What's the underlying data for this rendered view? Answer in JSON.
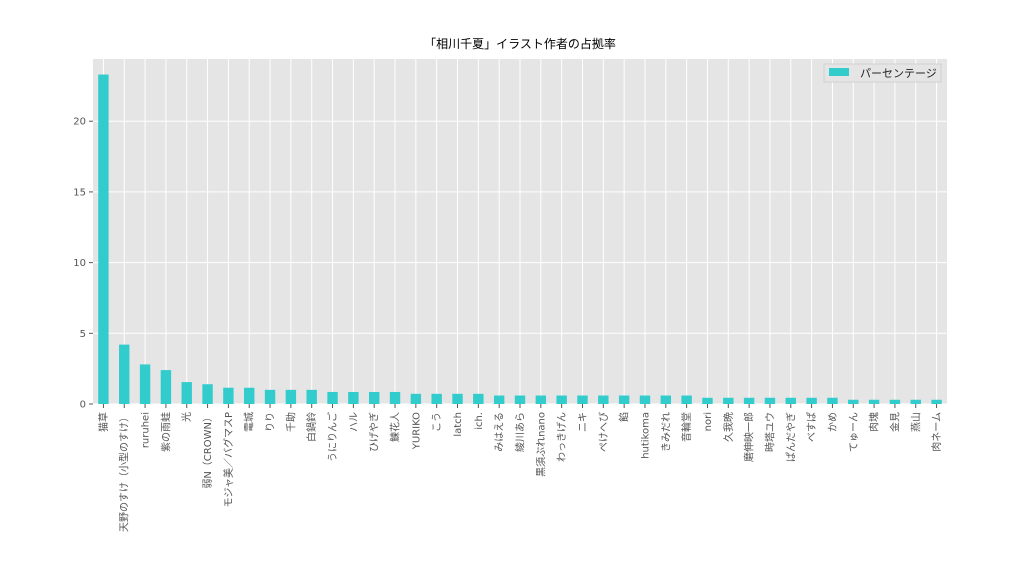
{
  "chart_data": {
    "type": "bar",
    "title": "「相川千夏」イラスト作者の占拠率",
    "xlabel": "",
    "ylabel": "",
    "ylim": [
      0,
      24.4
    ],
    "yticks": [
      0,
      5,
      10,
      15,
      20
    ],
    "grid": true,
    "legend_position": "top-right",
    "categories": [
      "猫草",
      "天野のすけ（小型のすけ）",
      "ruruhei",
      "紫の雨蛙",
      "光",
      "弱N（CROWN）",
      "モジャ美／バグマスP",
      "電城",
      "りり",
      "千助",
      "白鍋鈴",
      "うにりんご",
      "ハル",
      "ひげやぎ",
      "鰊花人",
      "YURIKO",
      "こう",
      "latch",
      "ich.",
      "みはえる",
      "綾川あら",
      "黒須ぶれnano",
      "わっきげん",
      "ニキ",
      "ぺけへび",
      "餡",
      "hutikoma",
      "きみだれ",
      "音輪堂",
      "nori",
      "久我晩",
      "磨伸映一郎",
      "時塔ユウ",
      "ぱんだやぎ",
      "べすぱ",
      "かめ",
      "てゅーん",
      "肉塊",
      "金見",
      "燕山",
      "肉ネーム"
    ],
    "series": [
      {
        "name": "パーセンテージ",
        "color": "#33cccc",
        "values": [
          23.3,
          4.2,
          2.8,
          2.4,
          1.55,
          1.4,
          1.15,
          1.15,
          1.0,
          1.0,
          1.0,
          0.85,
          0.85,
          0.85,
          0.85,
          0.72,
          0.72,
          0.72,
          0.72,
          0.6,
          0.6,
          0.6,
          0.6,
          0.6,
          0.6,
          0.6,
          0.6,
          0.6,
          0.6,
          0.44,
          0.44,
          0.44,
          0.44,
          0.44,
          0.44,
          0.44,
          0.3,
          0.3,
          0.3,
          0.3,
          0.3
        ]
      }
    ]
  }
}
